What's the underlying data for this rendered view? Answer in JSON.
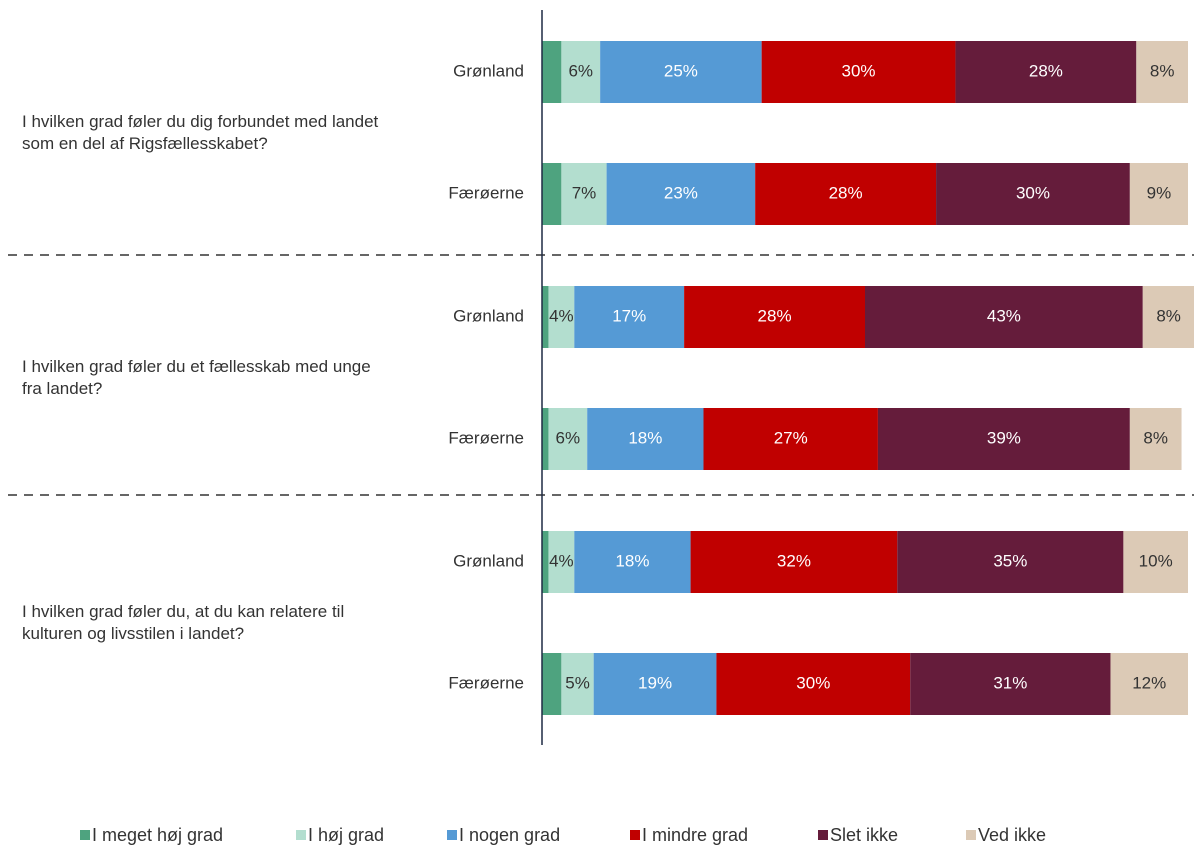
{
  "chart_data": {
    "type": "bar",
    "orientation": "horizontal",
    "stacked": true,
    "xlim": [
      0,
      100
    ],
    "groups": [
      {
        "label": "I hvilken grad føler du dig forbundet med landet som en del af Rigsfællesskabet?",
        "categories": [
          "Grønland",
          "Færøerne"
        ]
      },
      {
        "label": "I hvilken grad føler du et fællesskab med unge fra landet?",
        "categories": [
          "Grønland",
          "Færøerne"
        ]
      },
      {
        "label": "I hvilken grad føler du, at du kan relatere til kulturen og livsstilen i landet?",
        "categories": [
          "Grønland",
          "Færøerne"
        ]
      }
    ],
    "series": [
      {
        "name": "I meget høj grad",
        "color": "#4ea37f",
        "text_color": "#333333",
        "values": [
          3,
          3,
          1,
          1,
          1,
          3
        ]
      },
      {
        "name": "I høj grad",
        "color": "#b3decf",
        "text_color": "#333333",
        "values": [
          6,
          7,
          4,
          6,
          4,
          5
        ],
        "value_labels": [
          "6%",
          "7%",
          "4%",
          "6%",
          "4%",
          "5%"
        ]
      },
      {
        "name": "I nogen grad",
        "color": "#559ad5",
        "text_color": "#ffffff",
        "values": [
          25,
          23,
          17,
          18,
          18,
          19
        ],
        "value_labels": [
          "25%",
          "23%",
          "17%",
          "18%",
          "18%",
          "19%"
        ]
      },
      {
        "name": "I mindre grad",
        "color": "#c00000",
        "text_color": "#ffffff",
        "values": [
          30,
          28,
          28,
          27,
          32,
          30
        ],
        "value_labels": [
          "30%",
          "28%",
          "28%",
          "27%",
          "32%",
          "30%"
        ]
      },
      {
        "name": "Slet ikke",
        "color": "#651c3b",
        "text_color": "#ffffff",
        "values": [
          28,
          30,
          43,
          39,
          35,
          31
        ],
        "value_labels": [
          "28%",
          "30%",
          "43%",
          "39%",
          "35%",
          "31%"
        ]
      },
      {
        "name": "Ved ikke",
        "color": "#dccab6",
        "text_color": "#333333",
        "values": [
          8,
          9,
          8,
          8,
          10,
          12
        ],
        "value_labels": [
          "8%",
          "9%",
          "8%",
          "8%",
          "10%",
          "12%"
        ]
      }
    ]
  }
}
